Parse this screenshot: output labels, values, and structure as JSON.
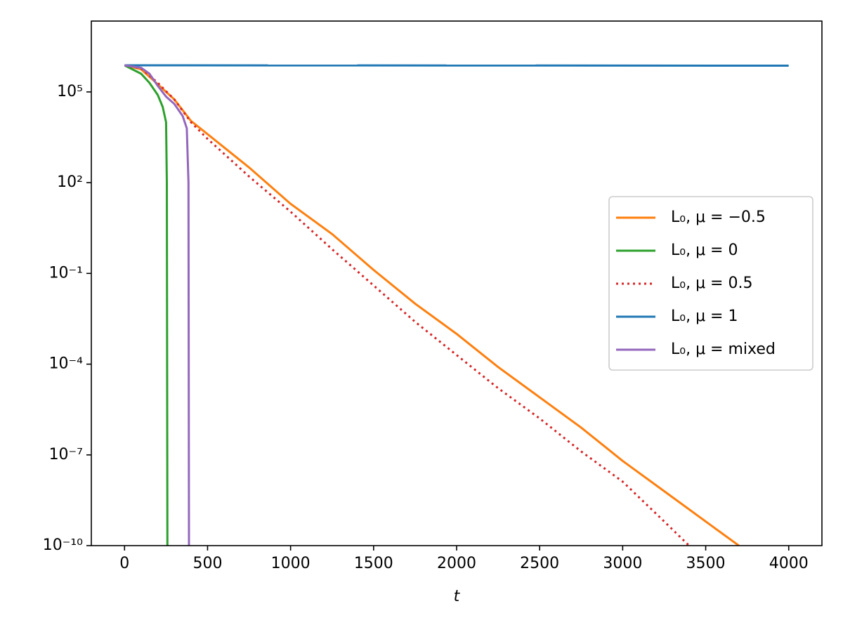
{
  "chart_data": {
    "type": "line",
    "xlabel": "t",
    "xlim": [
      -200,
      4200
    ],
    "xticks": [
      0,
      500,
      1000,
      1500,
      2000,
      2500,
      3000,
      3500,
      4000
    ],
    "ylim": [
      1e-10,
      22000000.0
    ],
    "log_y": true,
    "yticks": [
      {
        "value": 1e-10,
        "label": "10⁻¹⁰"
      },
      {
        "value": 1e-07,
        "label": "10⁻⁷"
      },
      {
        "value": 0.0001,
        "label": "10⁻⁴"
      },
      {
        "value": 0.1,
        "label": "10⁻¹"
      },
      {
        "value": 100,
        "label": "10²"
      },
      {
        "value": 100000,
        "label": "10⁵"
      }
    ],
    "legend": "center right",
    "series": [
      {
        "name": "L₀,  μ = −0.5",
        "color": "#ff7f0e",
        "linestyle": "solid",
        "x": [
          0,
          100,
          200,
          300,
          400,
          500,
          750,
          1000,
          1250,
          1500,
          1750,
          2000,
          2250,
          2500,
          2750,
          3000,
          3250,
          3500,
          3700
        ],
        "values": [
          760000.0,
          560000.0,
          180000.0,
          56000.0,
          11000.0,
          4000.0,
          320.0,
          20,
          2,
          0.13,
          0.01,
          0.001,
          8e-05,
          8e-06,
          8e-07,
          6.3e-08,
          6.3e-09,
          6.3e-10,
          1e-10
        ]
      },
      {
        "name": "L₀,  μ = 0",
        "color": "#2ca02c",
        "linestyle": "solid",
        "x": [
          0,
          100,
          150,
          200,
          230,
          250,
          255,
          258
        ],
        "values": [
          760000.0,
          400000.0,
          200000.0,
          80000.0,
          32000.0,
          10000.0,
          100,
          1e-10
        ]
      },
      {
        "name": "L₀,  μ = 0.5",
        "color": "#d62728",
        "linestyle": "dotted",
        "x": [
          0,
          100,
          200,
          300,
          400,
          500,
          750,
          1000,
          1250,
          1500,
          1750,
          2000,
          2250,
          2500,
          2750,
          3000,
          3250,
          3400
        ],
        "values": [
          760000.0,
          600000.0,
          200000.0,
          56000.0,
          10000.0,
          2800.0,
          160.0,
          11,
          0.63,
          0.04,
          0.0025,
          0.0002,
          1.6e-05,
          1.6e-06,
          1.3e-07,
          1.3e-08,
          6.3e-10,
          1e-10
        ]
      },
      {
        "name": "L₀,  μ = 1",
        "color": "#1f77b4",
        "linestyle": "solid",
        "x": [
          0,
          4000
        ],
        "values": [
          760000.0,
          740000.0
        ]
      },
      {
        "name": "L₀,  μ = mixed",
        "color": "#9467bd",
        "linestyle": "solid",
        "x": [
          0,
          100,
          150,
          200,
          250,
          300,
          350,
          375,
          385,
          388
        ],
        "values": [
          760000.0,
          630000.0,
          400000.0,
          160000.0,
          70000.0,
          40000.0,
          16000.0,
          6300.0,
          100,
          1e-10
        ]
      }
    ]
  }
}
